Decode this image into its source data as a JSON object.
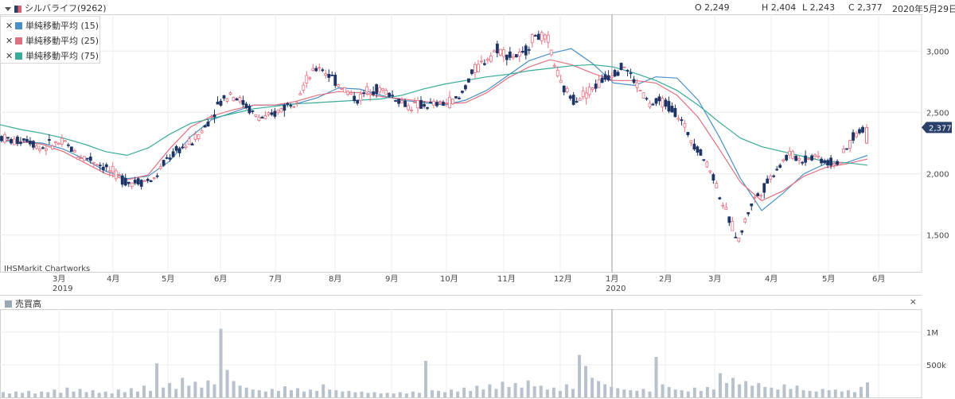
{
  "header": {
    "title": "シルバライフ(9262)",
    "open": "O 2,249",
    "high": "H 2,404",
    "low": "L 2,243",
    "close": "C 2,377",
    "date": "2020年5月29日"
  },
  "legend": [
    {
      "label": "単純移動平均 (15)",
      "color": "#4a90c8"
    },
    {
      "label": "単純移動平均 (25)",
      "color": "#e07080"
    },
    {
      "label": "単純移動平均 (75)",
      "color": "#3aab9a"
    }
  ],
  "watermark": "IHSMarkit Chartworks",
  "price_tag": "2,377",
  "volume_panel": {
    "label": "売買高",
    "close_icon": "×"
  },
  "chart_data": [
    {
      "type": "line",
      "subtype": "candlestick",
      "x_ticks": [
        "3月",
        "4月",
        "5月",
        "6月",
        "7月",
        "8月",
        "9月",
        "10月",
        "11月",
        "12月",
        "1月",
        "2月",
        "3月",
        "4月",
        "5月",
        "6月"
      ],
      "year_labels": [
        {
          "at": "3月",
          "label": "2019"
        },
        {
          "at": "1月",
          "label": "2020"
        }
      ],
      "y_ticks": [
        "3,000",
        "2,500",
        "2,000",
        "1,500"
      ],
      "y_tick_values": [
        3000,
        2500,
        2000,
        1500
      ],
      "ylim": [
        1200,
        3300
      ],
      "grid": true,
      "last": {
        "open": 2249,
        "high": 2404,
        "low": 2243,
        "close": 2377
      },
      "closes_weekly": [
        2300,
        2260,
        2290,
        2210,
        2240,
        2250,
        2150,
        2120,
        2060,
        1990,
        1930,
        1940,
        1950,
        2120,
        2200,
        2260,
        2380,
        2560,
        2660,
        2580,
        2470,
        2450,
        2530,
        2590,
        2760,
        2880,
        2780,
        2690,
        2600,
        2700,
        2680,
        2620,
        2550,
        2560,
        2560,
        2580,
        2610,
        2820,
        2920,
        3020,
        2960,
        2960,
        3140,
        3080,
        2720,
        2610,
        2660,
        2740,
        2820,
        2880,
        2720,
        2560,
        2590,
        2510,
        2330,
        2170,
        1980,
        1680,
        1460,
        1760,
        1890,
        2050,
        2160,
        2110,
        2150,
        2090,
        2100,
        2300,
        2377
      ],
      "series": [
        {
          "name": "単純移動平均 (15)",
          "values": [
            2270,
            2260,
            2250,
            2200,
            2120,
            2020,
            1960,
            1980,
            2100,
            2300,
            2440,
            2500,
            2560,
            2560,
            2570,
            2620,
            2700,
            2690,
            2640,
            2600,
            2580,
            2560,
            2600,
            2680,
            2800,
            2920,
            2980,
            3020,
            2900,
            2740,
            2720,
            2790,
            2780,
            2600,
            2300,
            1960,
            1700,
            1840,
            2000,
            2080,
            2090,
            2150
          ]
        },
        {
          "name": "単純移動平均 (25)",
          "values": [
            2280,
            2260,
            2240,
            2180,
            2090,
            2000,
            1950,
            1990,
            2200,
            2380,
            2470,
            2520,
            2560,
            2560,
            2590,
            2640,
            2670,
            2660,
            2630,
            2610,
            2590,
            2570,
            2580,
            2660,
            2780,
            2870,
            2930,
            2890,
            2820,
            2760,
            2760,
            2740,
            2640,
            2460,
            2200,
            1930,
            1780,
            1860,
            1980,
            2050,
            2080,
            2120
          ]
        },
        {
          "name": "単純移動平均 (75)",
          "values": [
            2400,
            2360,
            2330,
            2290,
            2240,
            2180,
            2150,
            2210,
            2320,
            2410,
            2450,
            2490,
            2530,
            2550,
            2570,
            2580,
            2590,
            2600,
            2610,
            2640,
            2690,
            2730,
            2760,
            2790,
            2810,
            2840,
            2860,
            2880,
            2890,
            2870,
            2820,
            2760,
            2680,
            2560,
            2420,
            2290,
            2220,
            2180,
            2140,
            2100,
            2090,
            2070
          ]
        }
      ]
    },
    {
      "type": "bar",
      "label": "売買高",
      "y_ticks": [
        "1M",
        "500k"
      ],
      "y_tick_values": [
        1000000,
        500000
      ],
      "ylim": [
        0,
        1350000
      ],
      "values": [
        80000,
        60000,
        90000,
        70000,
        100000,
        60000,
        90000,
        80000,
        120000,
        70000,
        150000,
        90000,
        130000,
        80000,
        110000,
        70000,
        90000,
        60000,
        120000,
        80000,
        140000,
        90000,
        180000,
        100000,
        520000,
        150000,
        220000,
        130000,
        300000,
        180000,
        240000,
        150000,
        260000,
        200000,
        1050000,
        420000,
        250000,
        180000,
        150000,
        120000,
        110000,
        90000,
        130000,
        100000,
        170000,
        110000,
        140000,
        90000,
        120000,
        100000,
        200000,
        120000,
        110000,
        90000,
        100000,
        80000,
        90000,
        70000,
        80000,
        60000,
        70000,
        60000,
        80000,
        60000,
        90000,
        70000,
        560000,
        110000,
        100000,
        80000,
        120000,
        90000,
        150000,
        100000,
        180000,
        120000,
        200000,
        130000,
        240000,
        160000,
        220000,
        150000,
        260000,
        170000,
        180000,
        120000,
        150000,
        100000,
        200000,
        130000,
        650000,
        480000,
        300000,
        250000,
        200000,
        160000,
        140000,
        120000,
        110000,
        100000,
        130000,
        90000,
        620000,
        200000,
        160000,
        120000,
        110000,
        90000,
        150000,
        100000,
        160000,
        120000,
        370000,
        220000,
        300000,
        200000,
        250000,
        180000,
        220000,
        160000,
        150000,
        120000,
        200000,
        130000,
        180000,
        110000,
        100000,
        90000,
        130000,
        110000,
        120000,
        90000,
        110000,
        80000,
        160000,
        230000
      ]
    }
  ]
}
